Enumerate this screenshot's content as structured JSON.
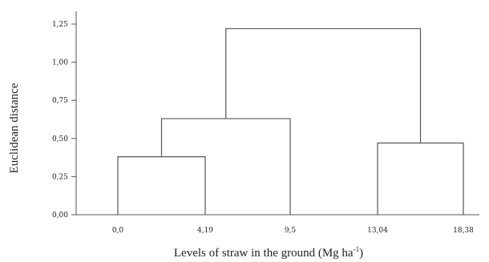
{
  "chart_data": {
    "type": "dendrogram",
    "xlabel": "Levels of straw in the ground (Mg ha",
    "xlabel_sup": "-1",
    "xlabel_end": ")",
    "ylabel": "Euclidean distance",
    "ylim": [
      0,
      1.25
    ],
    "y_ticks": [
      {
        "value": 0.0,
        "label": "0,00"
      },
      {
        "value": 0.25,
        "label": "0,25"
      },
      {
        "value": 0.5,
        "label": "0,50"
      },
      {
        "value": 0.75,
        "label": "0,75"
      },
      {
        "value": 1.0,
        "label": "1,00"
      },
      {
        "value": 1.25,
        "label": "1,25"
      }
    ],
    "leaves": [
      "0,0",
      "4,19",
      "9,5",
      "13,04",
      "18,38"
    ],
    "merges": [
      {
        "a": "leaf:0",
        "b": "leaf:1",
        "height": 0.38
      },
      {
        "a": "node:0",
        "b": "leaf:2",
        "height": 0.63
      },
      {
        "a": "leaf:3",
        "b": "leaf:4",
        "height": 0.47
      },
      {
        "a": "node:1",
        "b": "node:2",
        "height": 1.22
      }
    ],
    "grid": false,
    "legend": "none"
  }
}
